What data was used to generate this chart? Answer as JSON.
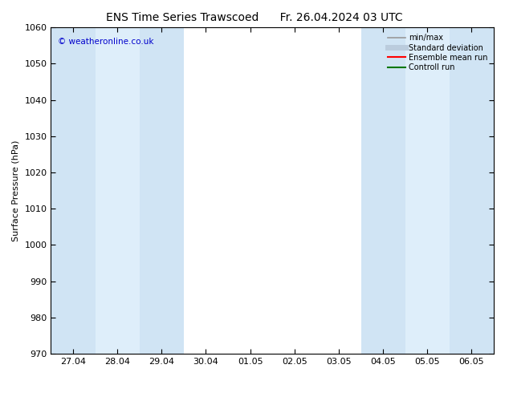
{
  "title_left": "ENS Time Series Trawscoed",
  "title_right": "Fr. 26.04.2024 03 UTC",
  "ylabel": "Surface Pressure (hPa)",
  "watermark": "© weatheronline.co.uk",
  "watermark_color": "#0000cc",
  "ylim": [
    970,
    1060
  ],
  "yticks": [
    970,
    980,
    990,
    1000,
    1010,
    1020,
    1030,
    1040,
    1050,
    1060
  ],
  "xtick_labels": [
    "27.04",
    "28.04",
    "29.04",
    "30.04",
    "01.05",
    "02.05",
    "03.05",
    "04.05",
    "05.05",
    "06.05"
  ],
  "xtick_positions": [
    0,
    1,
    2,
    3,
    4,
    5,
    6,
    7,
    8,
    9
  ],
  "xlim": [
    -0.5,
    9.5
  ],
  "bg_color": "#ffffff",
  "plot_bg_color": "#ffffff",
  "shaded_regions": [
    {
      "x_start": -0.5,
      "x_end": 0.5,
      "color": "#d0e4f4"
    },
    {
      "x_start": 0.5,
      "x_end": 1.5,
      "color": "#deeefa"
    },
    {
      "x_start": 1.5,
      "x_end": 2.5,
      "color": "#d0e4f4"
    },
    {
      "x_start": 6.5,
      "x_end": 7.5,
      "color": "#d0e4f4"
    },
    {
      "x_start": 7.5,
      "x_end": 8.5,
      "color": "#deeefa"
    },
    {
      "x_start": 8.5,
      "x_end": 9.5,
      "color": "#d0e4f4"
    }
  ],
  "legend_items": [
    {
      "label": "min/max",
      "color": "#999999",
      "lw": 1.2,
      "linestyle": "-"
    },
    {
      "label": "Standard deviation",
      "color": "#bbccdd",
      "lw": 5,
      "linestyle": "-"
    },
    {
      "label": "Ensemble mean run",
      "color": "#ff0000",
      "lw": 1.5,
      "linestyle": "-"
    },
    {
      "label": "Controll run",
      "color": "#007700",
      "lw": 1.5,
      "linestyle": "-"
    }
  ],
  "tick_color": "#000000",
  "title_fontsize": 10,
  "axis_label_fontsize": 8,
  "tick_fontsize": 8,
  "legend_fontsize": 7
}
